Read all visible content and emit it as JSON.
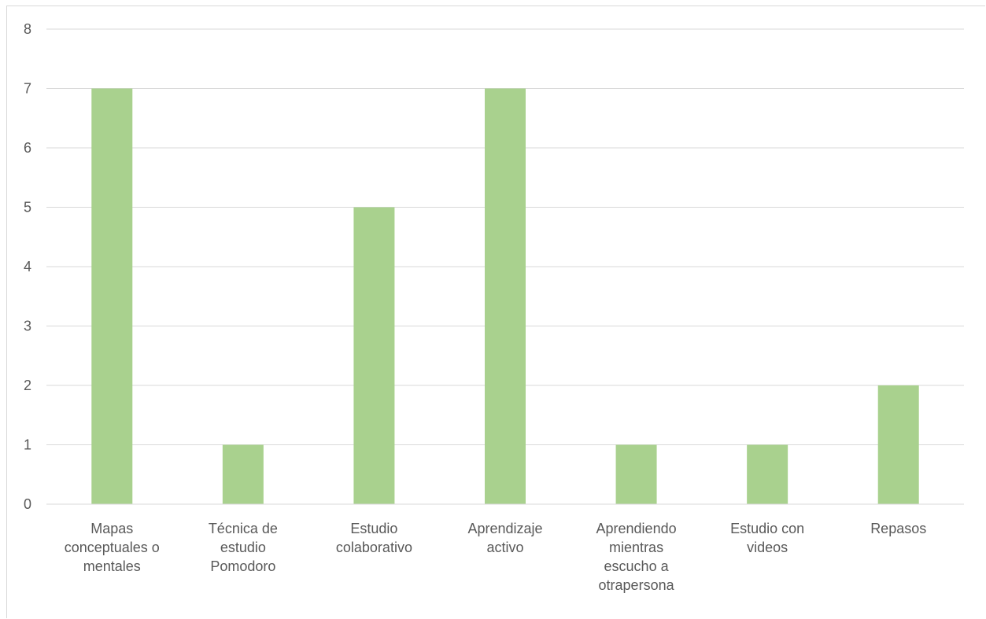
{
  "chart_data": {
    "type": "bar",
    "title": "",
    "xlabel": "",
    "ylabel": "",
    "ylim": [
      0,
      8
    ],
    "yticks": [
      0,
      1,
      2,
      3,
      4,
      5,
      6,
      7,
      8
    ],
    "grid": true,
    "legend": "none",
    "bar_color": "#a9d18e",
    "categories": [
      [
        "Mapas",
        "conceptuales o",
        "mentales"
      ],
      [
        "Técnica de",
        "estudio",
        "Pomodoro"
      ],
      [
        "Estudio",
        "colaborativo"
      ],
      [
        "Aprendizaje",
        "activo"
      ],
      [
        "Aprendiendo",
        "mientras",
        "escucho a",
        "otrapersona"
      ],
      [
        "Estudio con",
        "videos"
      ],
      [
        "Repasos"
      ]
    ],
    "values": [
      7,
      1,
      5,
      7,
      1,
      1,
      2
    ]
  }
}
